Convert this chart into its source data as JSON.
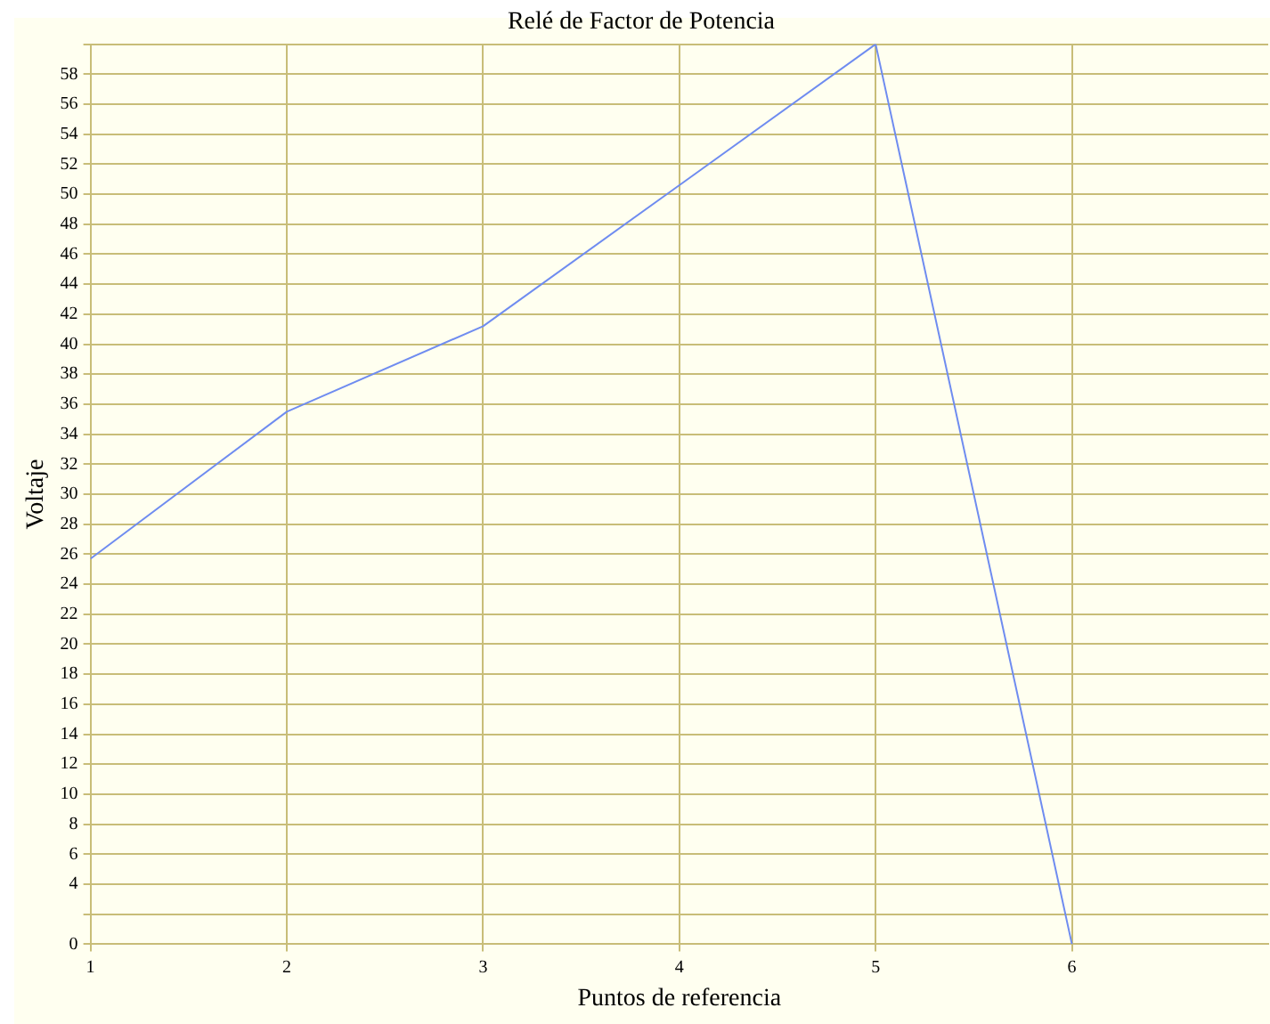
{
  "chart_data": {
    "type": "line",
    "title": "Relé de Factor de Potencia",
    "xlabel": "Puntos de referencia",
    "ylabel": "Voltaje",
    "x": [
      1,
      2,
      3,
      4,
      5,
      6
    ],
    "series": [
      {
        "color": "#6f8cf0",
        "values": [
          25.7,
          35.5,
          41.2,
          50.6,
          60,
          0
        ]
      }
    ],
    "xlim": [
      1,
      7
    ],
    "xticks": [
      1,
      2,
      3,
      4,
      5,
      6
    ],
    "ylim": [
      0,
      60
    ],
    "yticks": [
      0,
      {
        "value": 2,
        "label": null
      },
      4,
      6,
      8,
      10,
      12,
      14,
      16,
      18,
      20,
      22,
      24,
      26,
      28,
      30,
      32,
      34,
      36,
      38,
      40,
      42,
      44,
      46,
      48,
      50,
      52,
      54,
      56,
      58,
      {
        "value": 60,
        "label": null
      }
    ],
    "grid": true,
    "legend": false,
    "marker": "none",
    "line_style": "solid"
  }
}
